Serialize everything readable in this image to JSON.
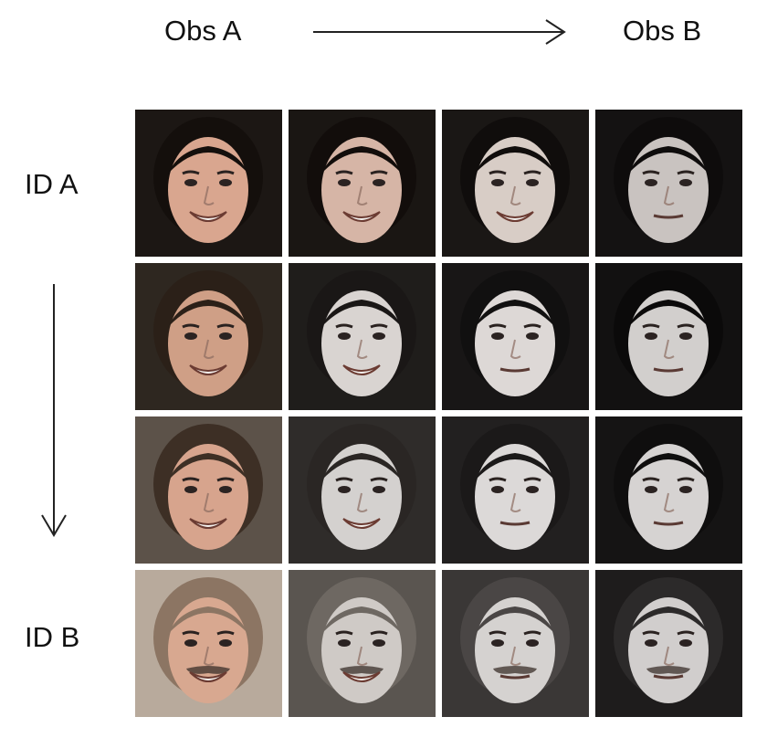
{
  "header": {
    "left_label": "Obs A",
    "right_label": "Obs B"
  },
  "side": {
    "top_label": "ID A",
    "bottom_label": "ID B"
  },
  "grid": {
    "rows": 4,
    "cols": 4,
    "faces": [
      {
        "name": "face-r1-c1",
        "bg": "#1c1714",
        "skin": "#d9a68f",
        "hair": "#140f0c",
        "smile": true,
        "beard": false
      },
      {
        "name": "face-r1-c2",
        "bg": "#1a1613",
        "skin": "#d6b5a6",
        "hair": "#120d0b",
        "smile": true,
        "beard": false
      },
      {
        "name": "face-r1-c3",
        "bg": "#1a1715",
        "skin": "#d8cdc6",
        "hair": "#100d0c",
        "smile": true,
        "beard": false
      },
      {
        "name": "face-r1-c4",
        "bg": "#141212",
        "skin": "#c9c3c0",
        "hair": "#0e0c0c",
        "smile": false,
        "beard": false
      },
      {
        "name": "face-r2-c1",
        "bg": "#2e2720",
        "skin": "#cf9f86",
        "hair": "#2b2018",
        "smile": true,
        "beard": false
      },
      {
        "name": "face-r2-c2",
        "bg": "#1f1d1b",
        "skin": "#d9d4d1",
        "hair": "#1a1716",
        "smile": true,
        "beard": false
      },
      {
        "name": "face-r2-c3",
        "bg": "#181616",
        "skin": "#ddd8d6",
        "hair": "#111010",
        "smile": false,
        "beard": false
      },
      {
        "name": "face-r2-c4",
        "bg": "#121111",
        "skin": "#d2cfcd",
        "hair": "#0b0a0a",
        "smile": false,
        "beard": false
      },
      {
        "name": "face-r3-c1",
        "bg": "#5c5249",
        "skin": "#d7a48d",
        "hair": "#3d2f25",
        "smile": true,
        "beard": false
      },
      {
        "name": "face-r3-c2",
        "bg": "#2f2c2a",
        "skin": "#d4d1cf",
        "hair": "#2a2624",
        "smile": true,
        "beard": false
      },
      {
        "name": "face-r3-c3",
        "bg": "#222020",
        "skin": "#dcd9d8",
        "hair": "#1b1919",
        "smile": false,
        "beard": false
      },
      {
        "name": "face-r3-c4",
        "bg": "#151414",
        "skin": "#d6d3d2",
        "hair": "#0f0e0e",
        "smile": false,
        "beard": false
      },
      {
        "name": "face-r4-c1",
        "bg": "#b8aa9c",
        "skin": "#d8a890",
        "hair": "#8c7563",
        "smile": true,
        "beard": true
      },
      {
        "name": "face-r4-c2",
        "bg": "#5a5550",
        "skin": "#cfcac6",
        "hair": "#6e6862",
        "smile": true,
        "beard": true
      },
      {
        "name": "face-r4-c3",
        "bg": "#3a3736",
        "skin": "#d5d2d0",
        "hair": "#4a4645",
        "smile": false,
        "beard": true
      },
      {
        "name": "face-r4-c4",
        "bg": "#1e1c1c",
        "skin": "#d1cecd",
        "hair": "#2c2a2a",
        "smile": false,
        "beard": true
      }
    ]
  }
}
